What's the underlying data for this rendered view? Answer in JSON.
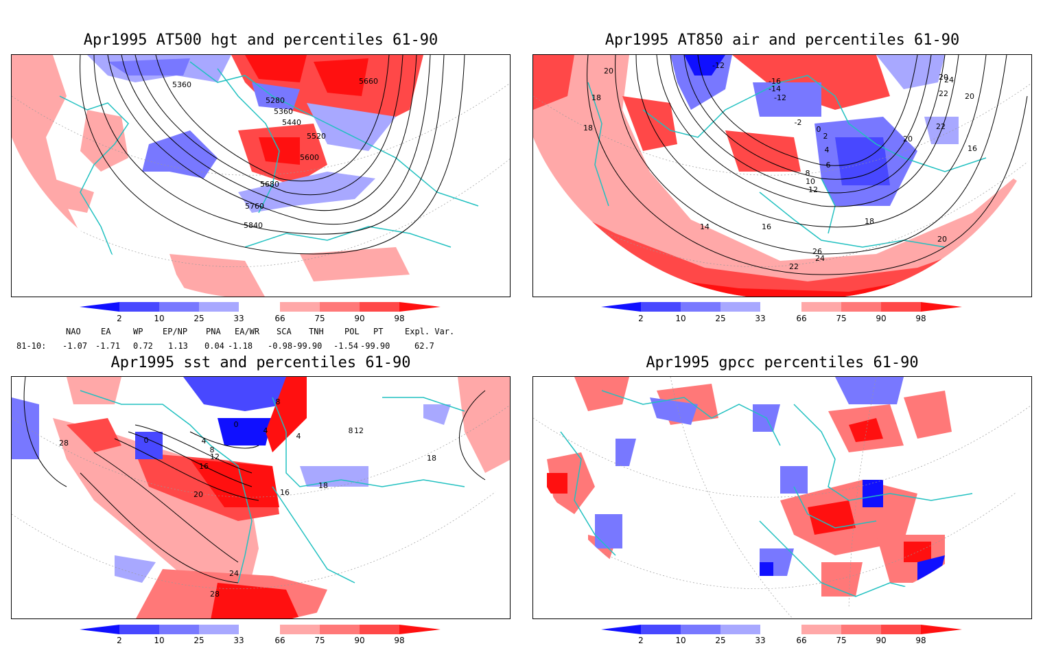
{
  "panels": [
    {
      "title": "Apr1995 AT500 hgt and percentiles 61-90",
      "contour_labels": [
        "5360",
        "5280",
        "5360",
        "5440",
        "5520",
        "5600",
        "5680",
        "5760",
        "5840",
        "5660"
      ]
    },
    {
      "title": "Apr1995 AT850 air and percentiles 61-90",
      "contour_labels": [
        "20",
        "18",
        "18",
        "-12",
        "-16",
        "-14",
        "-12",
        "-2",
        "0",
        "2",
        "4",
        "6",
        "8",
        "10",
        "12",
        "14",
        "16",
        "18",
        "26",
        "24",
        "22",
        "20",
        "24",
        "22",
        "20",
        "22",
        "20",
        "16",
        "20"
      ]
    },
    {
      "title": "Apr1995 sst and percentiles 61-90",
      "contour_labels": [
        "28",
        "0",
        "0",
        "4",
        "4",
        "8",
        "12",
        "16",
        "20",
        "24",
        "28",
        "4",
        "8",
        "12",
        "16",
        "18",
        "18",
        "8"
      ]
    },
    {
      "title": "Apr1995 gpcc percentiles 61-90",
      "contour_labels": []
    }
  ],
  "colorbar": {
    "ticks": [
      "2",
      "10",
      "25",
      "33",
      "66",
      "75",
      "90",
      "98"
    ],
    "colors": {
      "blue_dark": "#1010ff",
      "blue_mid": "#4848ff",
      "blue_light": "#7878ff",
      "blue_pale": "#a8a8ff",
      "red_pale": "#ffa8a8",
      "red_light": "#ff7878",
      "red_mid": "#ff4848",
      "red_dark": "#ff1010"
    }
  },
  "indices": {
    "headers": [
      "NAO",
      "EA",
      "WP",
      "EP/NP",
      "PNA",
      "EA/WR",
      "SCA",
      "TNH",
      "POL",
      "PT",
      "Expl. Var."
    ],
    "row_label": "81-10:",
    "values": [
      "-1.07",
      "-1.71",
      "0.72",
      "1.13",
      "0.04",
      "-1.18",
      "-0.98",
      "-99.90",
      "-1.54",
      "-99.90",
      "62.7"
    ]
  },
  "colors": {
    "coast": "#20c0c0",
    "contour": "#000000",
    "grid": "#999999"
  }
}
